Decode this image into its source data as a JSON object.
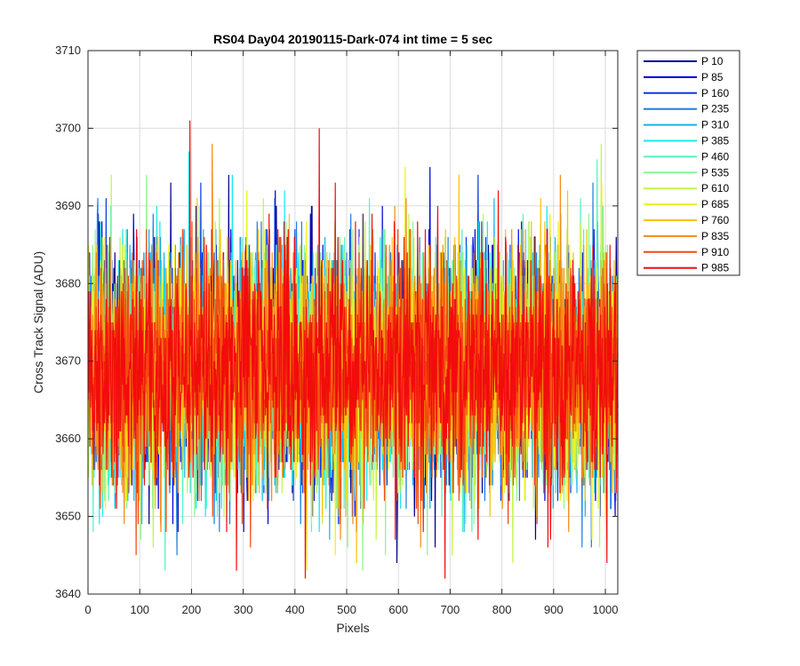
{
  "chart_data": {
    "type": "line",
    "title": "RS04 Day04 20190115-Dark-074 int time = 5 sec",
    "xlabel": "Pixels",
    "ylabel": "Cross Track Signal (ADU)",
    "xlim": [
      0,
      1024
    ],
    "ylim": [
      3640,
      3710
    ],
    "xticks": [
      0,
      100,
      200,
      300,
      400,
      500,
      600,
      700,
      800,
      900,
      1000
    ],
    "yticks": [
      3640,
      3650,
      3660,
      3670,
      3680,
      3690,
      3700,
      3710
    ],
    "xtick_labels": [
      "0",
      "100",
      "200",
      "300",
      "400",
      "500",
      "600",
      "700",
      "800",
      "900",
      "1000"
    ],
    "ytick_labels": [
      "3640",
      "3650",
      "3660",
      "3670",
      "3680",
      "3690",
      "3700",
      "3710"
    ],
    "grid": true,
    "legend_position": "outside-top-right",
    "noise_model": {
      "description": "Dark-frame cross-track signal, each series is noise around a mean level",
      "mean": 3669,
      "std": 7.5,
      "points_per_series": 1024,
      "x_start": 1,
      "x_step": 1
    },
    "series": [
      {
        "name": "P 10",
        "color": "#00008F"
      },
      {
        "name": "P 85",
        "color": "#0000D8"
      },
      {
        "name": "P 160",
        "color": "#0A3AE6"
      },
      {
        "name": "P 235",
        "color": "#1C7FE6"
      },
      {
        "name": "P 310",
        "color": "#11B4F0"
      },
      {
        "name": "P 385",
        "color": "#19E8EC"
      },
      {
        "name": "P 460",
        "color": "#56F2C6"
      },
      {
        "name": "P 535",
        "color": "#8CF58E"
      },
      {
        "name": "P 610",
        "color": "#C2F54A"
      },
      {
        "name": "P 685",
        "color": "#F0F019"
      },
      {
        "name": "P 760",
        "color": "#F9C20F"
      },
      {
        "name": "P 835",
        "color": "#F68A14"
      },
      {
        "name": "P 910",
        "color": "#F24A10"
      },
      {
        "name": "P 985",
        "color": "#F20C0C"
      }
    ],
    "notable_extremes": [
      {
        "x": 197,
        "y": 3701
      },
      {
        "x": 447,
        "y": 3700
      },
      {
        "x": 420,
        "y": 3642
      },
      {
        "x": 690,
        "y": 3642
      },
      {
        "x": 287,
        "y": 3643
      }
    ]
  }
}
